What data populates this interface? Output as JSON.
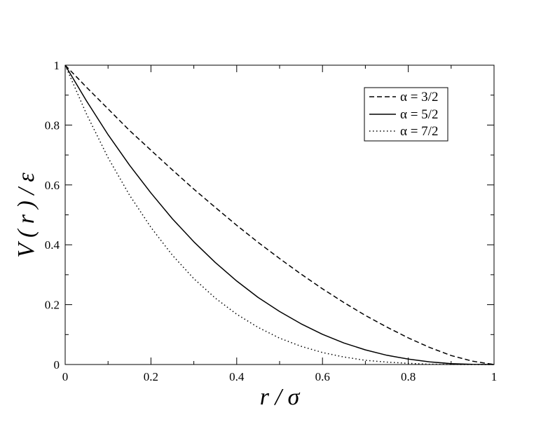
{
  "chart_data": {
    "type": "line",
    "xlabel": "r / σ",
    "ylabel": "V ( r ) / ε",
    "xlim": [
      0,
      1
    ],
    "ylim": [
      0,
      1
    ],
    "xticks": [
      "0",
      "0.2",
      "0.4",
      "0.6",
      "0.8",
      "1"
    ],
    "yticks": [
      "0",
      "0.2",
      "0.4",
      "0.6",
      "0.8",
      "1"
    ],
    "grid": false,
    "legend_position": "top-right",
    "series": [
      {
        "name": "α = 3/2",
        "style": "dashed",
        "x": [
          0,
          0.05,
          0.1,
          0.15,
          0.2,
          0.25,
          0.3,
          0.35,
          0.4,
          0.45,
          0.5,
          0.55,
          0.6,
          0.65,
          0.7,
          0.75,
          0.8,
          0.85,
          0.9,
          0.95,
          1
        ],
        "y": [
          1,
          0.926,
          0.854,
          0.782,
          0.716,
          0.65,
          0.586,
          0.525,
          0.465,
          0.408,
          0.354,
          0.302,
          0.253,
          0.207,
          0.164,
          0.125,
          0.089,
          0.057,
          0.03,
          0.011,
          0
        ]
      },
      {
        "name": "α = 5/2",
        "style": "solid",
        "x": [
          0,
          0.05,
          0.1,
          0.15,
          0.2,
          0.25,
          0.3,
          0.35,
          0.4,
          0.45,
          0.5,
          0.55,
          0.6,
          0.65,
          0.7,
          0.75,
          0.8,
          0.85,
          0.9,
          0.95,
          1
        ],
        "y": [
          1,
          0.88,
          0.768,
          0.666,
          0.573,
          0.487,
          0.41,
          0.341,
          0.279,
          0.224,
          0.177,
          0.136,
          0.101,
          0.072,
          0.049,
          0.031,
          0.018,
          0.009,
          0.003,
          0.0006,
          0
        ]
      },
      {
        "name": "α = 7/2",
        "style": "dotted",
        "x": [
          0,
          0.05,
          0.1,
          0.15,
          0.2,
          0.25,
          0.3,
          0.35,
          0.4,
          0.45,
          0.5,
          0.55,
          0.6,
          0.65,
          0.7,
          0.75,
          0.8,
          0.85,
          0.9,
          0.95,
          1
        ],
        "y": [
          1,
          0.836,
          0.691,
          0.566,
          0.458,
          0.365,
          0.287,
          0.222,
          0.168,
          0.124,
          0.088,
          0.061,
          0.04,
          0.025,
          0.014,
          0.008,
          0.004,
          0.001,
          0.0003,
          3e-05,
          0
        ]
      }
    ]
  }
}
